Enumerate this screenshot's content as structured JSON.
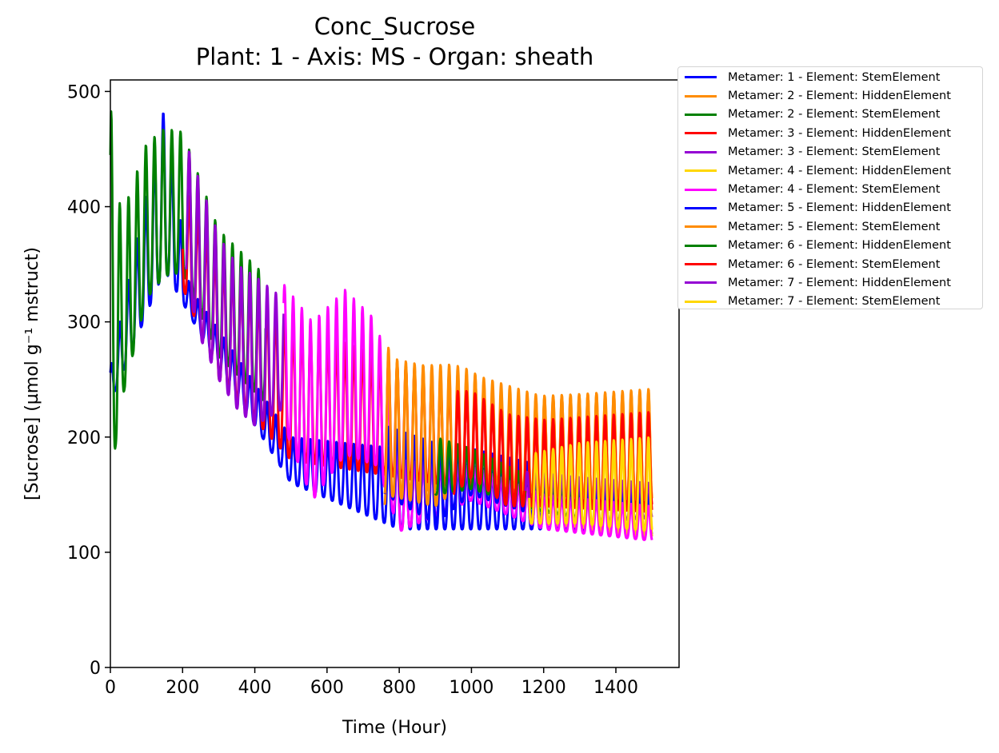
{
  "chart_data": {
    "type": "line",
    "title": "Conc_Sucrose",
    "subtitle": "Plant: 1 - Axis: MS - Organ: sheath",
    "xlabel": "Time (Hour)",
    "ylabel": "[Sucrose] (µmol g⁻¹ mstruct)",
    "xlim": [
      0,
      1575
    ],
    "ylim": [
      0,
      510
    ],
    "xticks": [
      0,
      200,
      400,
      600,
      800,
      1000,
      1200,
      1400
    ],
    "yticks": [
      0,
      100,
      200,
      300,
      400,
      500
    ],
    "grid": false,
    "legend_position": "outside-top-right",
    "series": [
      {
        "name": "Metamer: 1 - Element: StemElement",
        "color": "#0000ff",
        "x_range": [
          0,
          1500
        ],
        "peaks": [
          [
            0,
            260
          ],
          [
            150,
            487
          ],
          [
            220,
            330
          ],
          [
            500,
            200
          ],
          [
            800,
            190
          ],
          [
            1200,
            160
          ],
          [
            1500,
            150
          ]
        ],
        "troughs": [
          [
            0,
            230
          ],
          [
            150,
            345
          ],
          [
            300,
            260
          ],
          [
            500,
            160
          ],
          [
            800,
            120
          ],
          [
            1200,
            120
          ],
          [
            1500,
            115
          ]
        ]
      },
      {
        "name": "Metamer: 2 - Element: HiddenElement",
        "color": "#ff8c00",
        "x_range": [
          760,
          1500
        ],
        "peaks": [
          [
            760,
            283
          ],
          [
            800,
            262
          ],
          [
            950,
            263
          ],
          [
            1000,
            258
          ],
          [
            1100,
            230
          ],
          [
            1200,
            236
          ],
          [
            1500,
            240
          ]
        ],
        "troughs": [
          [
            760,
            140
          ],
          [
            800,
            150
          ],
          [
            1000,
            160
          ],
          [
            1100,
            150
          ],
          [
            1200,
            150
          ],
          [
            1500,
            145
          ]
        ]
      },
      {
        "name": "Metamer: 2 - Element: StemElement",
        "color": "#008000",
        "x_range": [
          0,
          430
        ],
        "peaks": [
          [
            0,
            490
          ],
          [
            30,
            390
          ],
          [
            100,
            455
          ],
          [
            150,
            468
          ],
          [
            200,
            465
          ],
          [
            300,
            380
          ],
          [
            430,
            340
          ]
        ],
        "troughs": [
          [
            0,
            158
          ],
          [
            30,
            230
          ],
          [
            100,
            320
          ],
          [
            150,
            340
          ],
          [
            200,
            343
          ],
          [
            300,
            270
          ],
          [
            430,
            230
          ]
        ]
      },
      {
        "name": "Metamer: 3 - Element: HiddenElement",
        "color": "#ff0000",
        "x_range": [
          200,
          1500
        ],
        "peaks": [
          [
            200,
            420
          ],
          [
            300,
            360
          ],
          [
            500,
            300
          ],
          [
            1000,
            240
          ],
          [
            1200,
            210
          ],
          [
            1500,
            220
          ]
        ],
        "troughs": [
          [
            200,
            330
          ],
          [
            300,
            250
          ],
          [
            500,
            180
          ],
          [
            1000,
            155
          ],
          [
            1200,
            140
          ],
          [
            1500,
            140
          ]
        ]
      },
      {
        "name": "Metamer: 3 - Element: StemElement",
        "color": "#9400d3",
        "x_range": [
          210,
          480
        ],
        "peaks": [
          [
            210,
            455
          ],
          [
            250,
            420
          ],
          [
            300,
            375
          ],
          [
            350,
            350
          ],
          [
            400,
            340
          ],
          [
            480,
            320
          ]
        ],
        "troughs": [
          [
            210,
            335
          ],
          [
            250,
            285
          ],
          [
            300,
            250
          ],
          [
            350,
            225
          ],
          [
            400,
            210
          ],
          [
            480,
            225
          ]
        ]
      },
      {
        "name": "Metamer: 4 - Element: HiddenElement",
        "color": "#ffd700",
        "x_range": [
          1160,
          1500
        ],
        "peaks": [
          [
            1160,
            180
          ],
          [
            1300,
            190
          ],
          [
            1400,
            195
          ],
          [
            1500,
            200
          ]
        ],
        "troughs": [
          [
            1160,
            125
          ],
          [
            1300,
            122
          ],
          [
            1400,
            115
          ],
          [
            1500,
            112
          ]
        ]
      },
      {
        "name": "Metamer: 4 - Element: StemElement",
        "color": "#ff00ff",
        "x_range": [
          480,
          1500
        ],
        "peaks": [
          [
            480,
            333
          ],
          [
            560,
            300
          ],
          [
            650,
            328
          ],
          [
            740,
            300
          ],
          [
            800,
            180
          ],
          [
            1000,
            175
          ],
          [
            1200,
            150
          ],
          [
            1500,
            140
          ]
        ],
        "troughs": [
          [
            480,
            210
          ],
          [
            560,
            145
          ],
          [
            650,
            185
          ],
          [
            740,
            175
          ],
          [
            800,
            118
          ],
          [
            1000,
            145
          ],
          [
            1200,
            120
          ],
          [
            1500,
            110
          ]
        ]
      },
      {
        "name": "Metamer: 5 - Element: HiddenElement",
        "color": "#0000ff",
        "x_range": [
          760,
          1200
        ],
        "peaks": [
          [
            760,
            210
          ],
          [
            900,
            195
          ],
          [
            1000,
            190
          ],
          [
            1200,
            175
          ]
        ],
        "troughs": [
          [
            760,
            150
          ],
          [
            900,
            125
          ],
          [
            1000,
            150
          ],
          [
            1200,
            130
          ]
        ]
      },
      {
        "name": "Metamer: 5 - Element: StemElement",
        "color": "#ff8c00",
        "x_range": [
          760,
          1500
        ],
        "peaks": [
          [
            760,
            270
          ],
          [
            900,
            260
          ],
          [
            1000,
            255
          ],
          [
            1200,
            235
          ],
          [
            1500,
            242
          ]
        ],
        "troughs": [
          [
            760,
            150
          ],
          [
            900,
            140
          ],
          [
            1000,
            165
          ],
          [
            1200,
            150
          ],
          [
            1500,
            145
          ]
        ]
      },
      {
        "name": "Metamer: 6 - Element: HiddenElement",
        "color": "#008000",
        "x_range": [
          900,
          1300
        ],
        "peaks": [
          [
            900,
            200
          ],
          [
            1000,
            190
          ],
          [
            1200,
            160
          ],
          [
            1300,
            155
          ]
        ],
        "troughs": [
          [
            900,
            150
          ],
          [
            1000,
            155
          ],
          [
            1200,
            135
          ],
          [
            1300,
            130
          ]
        ]
      },
      {
        "name": "Metamer: 6 - Element: StemElement",
        "color": "#ff0000",
        "x_range": [
          950,
          1500
        ],
        "peaks": [
          [
            950,
            240
          ],
          [
            1000,
            240
          ],
          [
            1100,
            220
          ],
          [
            1200,
            215
          ],
          [
            1500,
            222
          ]
        ],
        "troughs": [
          [
            950,
            150
          ],
          [
            1000,
            165
          ],
          [
            1100,
            140
          ],
          [
            1200,
            140
          ],
          [
            1500,
            135
          ]
        ]
      },
      {
        "name": "Metamer: 7 - Element: HiddenElement",
        "color": "#9400d3",
        "x_range": [
          1150,
          1500
        ],
        "peaks": [
          [
            1150,
            170
          ],
          [
            1300,
            165
          ],
          [
            1500,
            160
          ]
        ],
        "troughs": [
          [
            1150,
            130
          ],
          [
            1300,
            125
          ],
          [
            1500,
            130
          ]
        ]
      },
      {
        "name": "Metamer: 7 - Element: StemElement",
        "color": "#ffd700",
        "x_range": [
          1160,
          1500
        ],
        "peaks": [
          [
            1160,
            185
          ],
          [
            1300,
            195
          ],
          [
            1500,
            200
          ]
        ],
        "troughs": [
          [
            1160,
            125
          ],
          [
            1300,
            125
          ],
          [
            1500,
            118
          ]
        ]
      }
    ],
    "period_hours": 24
  }
}
